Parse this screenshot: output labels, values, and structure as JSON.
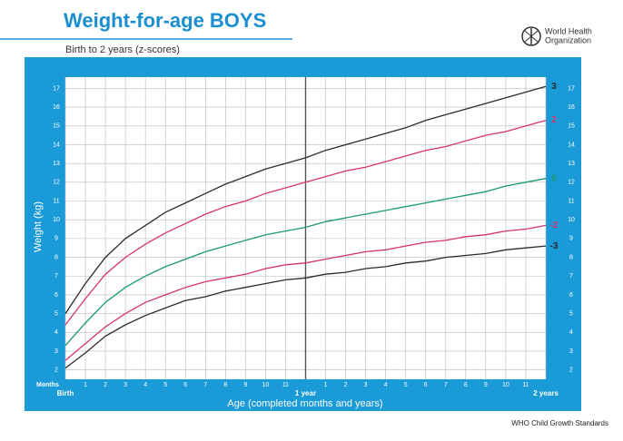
{
  "header": {
    "title": "Weight-for-age BOYS",
    "subtitle": "Birth to 2 years (z-scores)",
    "org_name": [
      "World Health",
      "Organization"
    ],
    "footer": "WHO Child Growth Standards"
  },
  "chart_data": {
    "type": "line",
    "ylabel": "Weight (kg)",
    "xlabel": "Age (completed months and years)",
    "xunit_label": "Months",
    "x": [
      0,
      1,
      2,
      3,
      4,
      5,
      6,
      7,
      8,
      9,
      10,
      11,
      12,
      13,
      14,
      15,
      16,
      17,
      18,
      19,
      20,
      21,
      22,
      23,
      24
    ],
    "xlim": [
      0,
      24
    ],
    "xticks": [
      {
        "value": 0,
        "label": "Birth"
      },
      1,
      2,
      3,
      4,
      5,
      6,
      7,
      8,
      9,
      10,
      11,
      {
        "value": 12,
        "label": "1 year"
      },
      {
        "value": 13,
        "label": "1"
      },
      {
        "value": 14,
        "label": "2"
      },
      {
        "value": 15,
        "label": "3"
      },
      {
        "value": 16,
        "label": "4"
      },
      {
        "value": 17,
        "label": "5"
      },
      {
        "value": 18,
        "label": "6"
      },
      {
        "value": 19,
        "label": "7"
      },
      {
        "value": 20,
        "label": "8"
      },
      {
        "value": 21,
        "label": "9"
      },
      {
        "value": 22,
        "label": "10"
      },
      {
        "value": 23,
        "label": "11"
      },
      {
        "value": 24,
        "label": "2 years"
      }
    ],
    "ylim": [
      1.5,
      17.6
    ],
    "yticks": [
      2,
      3,
      4,
      5,
      6,
      7,
      8,
      9,
      10,
      11,
      12,
      13,
      14,
      15,
      16,
      17
    ],
    "grid": true,
    "series": [
      {
        "name": "3",
        "color": "#2b2b2b",
        "values": [
          5.0,
          6.6,
          8.0,
          9.0,
          9.7,
          10.4,
          10.9,
          11.4,
          11.9,
          12.3,
          12.7,
          13.0,
          13.3,
          13.7,
          14.0,
          14.3,
          14.6,
          14.9,
          15.3,
          15.6,
          15.9,
          16.2,
          16.5,
          16.8,
          17.1
        ]
      },
      {
        "name": "2",
        "color": "#d6336c",
        "values": [
          4.4,
          5.8,
          7.1,
          8.0,
          8.7,
          9.3,
          9.8,
          10.3,
          10.7,
          11.0,
          11.4,
          11.7,
          12.0,
          12.3,
          12.6,
          12.8,
          13.1,
          13.4,
          13.7,
          13.9,
          14.2,
          14.5,
          14.7,
          15.0,
          15.3
        ]
      },
      {
        "name": "0",
        "color": "#1a9b6c",
        "values": [
          3.3,
          4.5,
          5.6,
          6.4,
          7.0,
          7.5,
          7.9,
          8.3,
          8.6,
          8.9,
          9.2,
          9.4,
          9.6,
          9.9,
          10.1,
          10.3,
          10.5,
          10.7,
          10.9,
          11.1,
          11.3,
          11.5,
          11.8,
          12.0,
          12.2
        ]
      },
      {
        "name": "-2",
        "color": "#d6336c",
        "values": [
          2.5,
          3.4,
          4.3,
          5.0,
          5.6,
          6.0,
          6.4,
          6.7,
          6.9,
          7.1,
          7.4,
          7.6,
          7.7,
          7.9,
          8.1,
          8.3,
          8.4,
          8.6,
          8.8,
          8.9,
          9.1,
          9.2,
          9.4,
          9.5,
          9.7
        ]
      },
      {
        "name": "-3",
        "color": "#2b2b2b",
        "values": [
          2.1,
          2.9,
          3.8,
          4.4,
          4.9,
          5.3,
          5.7,
          5.9,
          6.2,
          6.4,
          6.6,
          6.8,
          6.9,
          7.1,
          7.2,
          7.4,
          7.5,
          7.7,
          7.8,
          8.0,
          8.1,
          8.2,
          8.4,
          8.5,
          8.6
        ]
      }
    ]
  }
}
